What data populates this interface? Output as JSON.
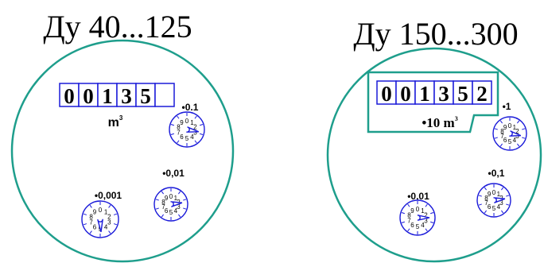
{
  "colors": {
    "circle": "#1e9e8c",
    "display": "#1a1ad9",
    "dial": "#1a1ad9",
    "text": "#000000"
  },
  "left": {
    "title": "Ду 40...125",
    "digits": [
      "0",
      "0",
      "1",
      "3",
      "5",
      ""
    ],
    "unit_main": "m",
    "unit_exp": "3",
    "dials": [
      {
        "label": "•0.1",
        "pointer_value": 2.8
      },
      {
        "label": "•0,01",
        "pointer_value": 2.3
      },
      {
        "label": "•0,001",
        "pointer_value": 4.9
      }
    ]
  },
  "right": {
    "title": "Ду 150...300",
    "digits": [
      "0",
      "0",
      "1",
      "3",
      "5",
      "2"
    ],
    "unit_prefix": "•10 m",
    "unit_exp": "3",
    "dials": [
      {
        "label": "•1",
        "pointer_value": 2.8
      },
      {
        "label": "•0,1",
        "pointer_value": 2.3
      },
      {
        "label": "•0,01",
        "pointer_value": 2.5
      }
    ]
  },
  "dial_numbers": [
    "0",
    "1",
    "2",
    "3",
    "4",
    "5",
    "6",
    "7",
    "8",
    "9"
  ]
}
